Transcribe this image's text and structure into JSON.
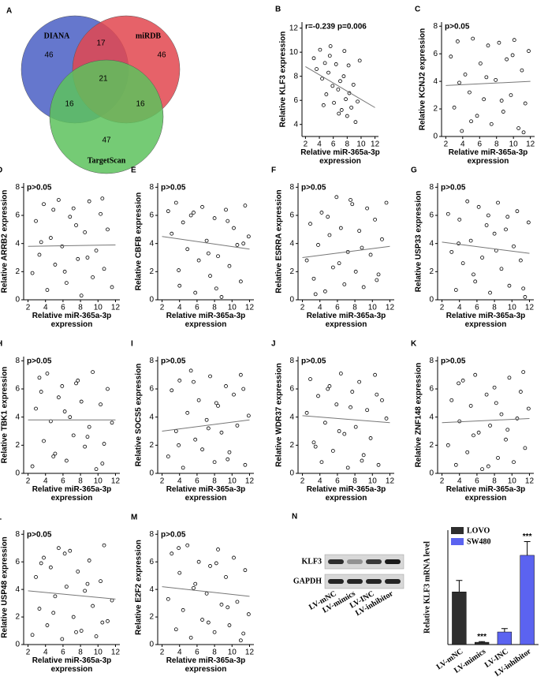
{
  "chart_data": [
    {
      "type": "venn",
      "label": "A",
      "sets": [
        "DIANA",
        "miRDB",
        "TargetScan"
      ],
      "colors": [
        "#4a5fc4",
        "#e2474f",
        "#5dc25d"
      ],
      "regions": [
        46,
        46,
        47,
        17,
        16,
        16,
        21
      ]
    },
    {
      "type": "scatter",
      "label": "B",
      "annotation": "r=-0.239   p=0.006",
      "xlabel": "Relative miR-365a-3p expression",
      "ylabel": "Relative KLF3  expression",
      "xlim": [
        1.5,
        12.5
      ],
      "ylim": [
        3,
        12.5
      ],
      "xticks": [
        2,
        4,
        6,
        8,
        10,
        12
      ],
      "yticks": [
        4,
        6,
        8,
        10,
        12
      ],
      "x": [
        3.2,
        3.6,
        4.1,
        4.4,
        4.8,
        5.0,
        5.3,
        5.6,
        5.9,
        6.1,
        6.4,
        6.7,
        7.0,
        7.2,
        7.5,
        7.8,
        8.0,
        8.3,
        8.6,
        8.9,
        9.2,
        9.5,
        4.6,
        5.5,
        6.8,
        7.6,
        8.2,
        9.8
      ],
      "y": [
        9.5,
        8.6,
        10.2,
        7.8,
        9.1,
        6.5,
        8.3,
        10.5,
        7.2,
        5.8,
        9.0,
        6.9,
        7.6,
        5.2,
        8.0,
        6.1,
        4.7,
        6.6,
        5.4,
        7.3,
        4.2,
        5.9,
        5.6,
        9.7,
        4.9,
        10.1,
        8.9,
        9.3
      ],
      "trend_x": [
        2,
        12
      ],
      "trend_y": [
        8.8,
        5.4
      ]
    },
    {
      "type": "scatter",
      "label": "C",
      "annotation": "p>0.05",
      "xlabel": "Relative miR-365a-3p expression",
      "ylabel": "Relative KCNJ2 expression",
      "xlim": [
        1.5,
        12.5
      ],
      "ylim": [
        0,
        8.3
      ],
      "xticks": [
        2,
        4,
        6,
        8,
        10,
        12
      ],
      "yticks": [
        0,
        2,
        4,
        6,
        8
      ],
      "x": [
        2.6,
        3.0,
        3.4,
        3.9,
        4.3,
        4.8,
        5.2,
        5.7,
        6.1,
        6.5,
        7.0,
        7.4,
        7.9,
        8.3,
        8.8,
        9.2,
        9.7,
        10.1,
        10.6,
        11.0,
        11.4,
        11.8,
        3.6,
        5.0,
        6.8,
        8.6,
        9.9,
        11.2
      ],
      "y": [
        5.8,
        2.1,
        6.9,
        0.4,
        4.5,
        3.2,
        7.1,
        1.5,
        5.3,
        2.7,
        6.6,
        0.9,
        4.1,
        6.8,
        1.8,
        5.6,
        3.0,
        7.0,
        0.6,
        4.8,
        2.4,
        6.2,
        3.9,
        1.1,
        4.3,
        2.6,
        5.9,
        0.3
      ],
      "trend_x": [
        2,
        12
      ],
      "trend_y": [
        3.7,
        4.0
      ]
    },
    {
      "type": "scatter",
      "label": "D",
      "annotation": "p>0.05",
      "xlabel": "Relative miR-365a-3p expression",
      "ylabel": "Relative ARRB2 expression",
      "xlim": [
        1.5,
        12.5
      ],
      "ylim": [
        0,
        8.3
      ],
      "xticks": [
        2,
        4,
        6,
        8,
        10,
        12
      ],
      "yticks": [
        0,
        2,
        4,
        6,
        8
      ],
      "x": [
        2.5,
        2.9,
        3.3,
        3.8,
        4.2,
        4.6,
        5.1,
        5.5,
        5.9,
        6.4,
        6.8,
        7.2,
        7.7,
        8.1,
        8.5,
        9.0,
        9.4,
        9.8,
        10.3,
        10.7,
        11.1,
        11.6,
        3.5,
        4.9,
        6.2,
        7.5,
        8.8,
        10.5
      ],
      "y": [
        1.9,
        5.6,
        3.2,
        6.8,
        0.7,
        4.4,
        2.5,
        7.1,
        3.8,
        1.2,
        5.9,
        6.5,
        2.9,
        0.3,
        4.8,
        7.0,
        1.6,
        3.5,
        6.1,
        2.2,
        5.0,
        0.9,
        4.1,
        6.4,
        2.0,
        5.3,
        3.0,
        7.2
      ],
      "trend_x": [
        2,
        12
      ],
      "trend_y": [
        3.8,
        3.9
      ]
    },
    {
      "type": "scatter",
      "label": "E",
      "annotation": "p>0.05",
      "xlabel": "Relative miR-365a-3p expression",
      "ylabel": "Relative CBFB  expression",
      "xlim": [
        1.5,
        12.5
      ],
      "ylim": [
        0,
        8.3
      ],
      "xticks": [
        2,
        4,
        6,
        8,
        10,
        12
      ],
      "yticks": [
        0,
        2,
        4,
        6,
        8
      ],
      "x": [
        2.7,
        3.1,
        3.6,
        4.0,
        4.4,
        4.9,
        5.3,
        5.8,
        6.2,
        6.6,
        7.1,
        7.5,
        8.0,
        8.4,
        8.8,
        9.3,
        9.7,
        10.2,
        10.6,
        11.0,
        11.5,
        11.9,
        3.9,
        5.6,
        7.3,
        8.2,
        9.5,
        11.3
      ],
      "y": [
        6.3,
        4.7,
        6.9,
        1.0,
        5.5,
        3.6,
        6.0,
        0.5,
        2.8,
        6.6,
        4.2,
        1.7,
        5.8,
        3.1,
        0.2,
        6.4,
        2.4,
        5.1,
        3.9,
        1.3,
        6.7,
        4.5,
        2.1,
        6.2,
        3.3,
        0.8,
        5.6,
        4.0
      ],
      "trend_x": [
        2,
        12
      ],
      "trend_y": [
        4.5,
        3.6
      ]
    },
    {
      "type": "scatter",
      "label": "F",
      "annotation": "p>0.05",
      "xlabel": "Relative miR-365a-3p expression",
      "ylabel": "Relative ESRRA expression",
      "xlim": [
        1.5,
        12.5
      ],
      "ylim": [
        0,
        8.3
      ],
      "xticks": [
        2,
        4,
        6,
        8,
        10,
        12
      ],
      "yticks": [
        0,
        2,
        4,
        6,
        8
      ],
      "x": [
        2.5,
        2.9,
        3.3,
        3.8,
        4.2,
        4.6,
        5.1,
        5.5,
        5.9,
        6.4,
        6.8,
        7.2,
        7.7,
        8.1,
        8.5,
        9.0,
        9.4,
        9.8,
        10.3,
        10.7,
        11.1,
        11.6,
        3.5,
        4.9,
        6.2,
        7.5,
        8.8,
        10.5
      ],
      "y": [
        2.8,
        5.4,
        1.5,
        3.9,
        6.2,
        0.6,
        4.6,
        2.3,
        7.3,
        5.1,
        1.1,
        3.4,
        6.8,
        2.0,
        4.9,
        0.9,
        6.5,
        3.2,
        5.7,
        1.8,
        4.3,
        6.9,
        0.4,
        5.9,
        2.6,
        7.1,
        3.7,
        1.4
      ],
      "trend_x": [
        2,
        12
      ],
      "trend_y": [
        3.0,
        3.8
      ]
    },
    {
      "type": "scatter",
      "label": "G",
      "annotation": "p>0.05",
      "xlabel": "Relative miR-365a-3p expression",
      "ylabel": "Relative USP33 expression",
      "xlim": [
        1.5,
        12.5
      ],
      "ylim": [
        0,
        8.3
      ],
      "xticks": [
        2,
        4,
        6,
        8,
        10,
        12
      ],
      "yticks": [
        0,
        2,
        4,
        6,
        8
      ],
      "x": [
        2.7,
        3.1,
        3.6,
        4.0,
        4.4,
        4.9,
        5.3,
        5.8,
        6.2,
        6.6,
        7.1,
        7.5,
        8.0,
        8.4,
        8.8,
        9.3,
        9.7,
        10.2,
        10.6,
        11.0,
        11.5,
        11.9,
        3.9,
        5.6,
        7.3,
        8.2,
        9.5,
        11.3
      ],
      "y": [
        6.1,
        3.4,
        0.7,
        5.7,
        2.6,
        7.0,
        4.2,
        1.3,
        6.6,
        3.0,
        5.3,
        0.5,
        4.7,
        6.9,
        2.2,
        5.0,
        1.0,
        3.8,
        6.3,
        2.8,
        0.2,
        5.5,
        4.0,
        1.8,
        6.0,
        3.5,
        5.9,
        0.8
      ],
      "trend_x": [
        2,
        12
      ],
      "trend_y": [
        4.1,
        3.3
      ]
    },
    {
      "type": "scatter",
      "label": "H",
      "annotation": "p>0.05",
      "xlabel": "Relative miR-365a-3p expression",
      "ylabel": "Relative TBK1  expression",
      "xlim": [
        1.5,
        12.5
      ],
      "ylim": [
        0,
        8.3
      ],
      "xticks": [
        2,
        4,
        6,
        8,
        10,
        12
      ],
      "yticks": [
        0,
        2,
        4,
        6,
        8
      ],
      "x": [
        2.5,
        2.9,
        3.3,
        3.8,
        4.2,
        4.6,
        5.1,
        5.5,
        5.9,
        6.4,
        6.8,
        7.2,
        7.7,
        8.1,
        8.5,
        9.0,
        9.4,
        9.8,
        10.3,
        10.7,
        11.1,
        11.6,
        3.5,
        4.9,
        6.2,
        7.5,
        8.8,
        10.5
      ],
      "y": [
        0.5,
        4.6,
        6.8,
        2.3,
        7.1,
        3.7,
        1.4,
        5.4,
        6.2,
        0.9,
        4.0,
        2.7,
        6.6,
        5.1,
        1.9,
        3.3,
        7.2,
        0.3,
        4.9,
        2.1,
        6.0,
        3.6,
        5.8,
        1.2,
        4.4,
        6.4,
        2.6,
        0.7
      ],
      "trend_x": [
        2,
        12
      ],
      "trend_y": [
        3.8,
        3.8
      ]
    },
    {
      "type": "scatter",
      "label": "I",
      "annotation": "p>0.05",
      "xlabel": "Relative miR-365a-3p expression",
      "ylabel": "Relative SOCS5  expression",
      "xlim": [
        1.5,
        12.5
      ],
      "ylim": [
        0,
        8.3
      ],
      "xticks": [
        2,
        4,
        6,
        8,
        10,
        12
      ],
      "yticks": [
        0,
        2,
        4,
        6,
        8
      ],
      "x": [
        2.7,
        3.1,
        3.6,
        4.0,
        4.4,
        4.9,
        5.3,
        5.8,
        6.2,
        6.6,
        7.1,
        7.5,
        8.0,
        8.4,
        8.8,
        9.3,
        9.7,
        10.2,
        10.6,
        11.0,
        11.5,
        11.9,
        3.9,
        5.6,
        7.3,
        8.2,
        9.5,
        11.3
      ],
      "y": [
        1.2,
        5.9,
        3.0,
        6.6,
        0.4,
        4.3,
        7.3,
        2.4,
        5.2,
        1.7,
        3.8,
        6.9,
        0.8,
        4.8,
        2.9,
        6.2,
        1.5,
        5.6,
        3.4,
        7.0,
        0.6,
        4.1,
        2.0,
        6.5,
        3.2,
        5.0,
        1.0,
        6.0
      ],
      "trend_x": [
        2,
        12
      ],
      "trend_y": [
        3.0,
        3.8
      ]
    },
    {
      "type": "scatter",
      "label": "J",
      "annotation": "p>0.05",
      "xlabel": "Relative miR-365a-3p expression",
      "ylabel": "Relative WDR37  expression",
      "xlim": [
        1.5,
        12.5
      ],
      "ylim": [
        0,
        8.3
      ],
      "xticks": [
        2,
        4,
        6,
        8,
        10,
        12
      ],
      "yticks": [
        0,
        2,
        4,
        6,
        8
      ],
      "x": [
        2.5,
        2.9,
        3.3,
        3.8,
        4.2,
        4.6,
        5.1,
        5.5,
        5.9,
        6.4,
        6.8,
        7.2,
        7.7,
        8.1,
        8.5,
        9.0,
        9.4,
        9.8,
        10.3,
        10.7,
        11.1,
        11.6,
        3.5,
        4.9,
        6.2,
        7.5,
        8.8,
        10.5
      ],
      "y": [
        4.3,
        6.7,
        2.2,
        5.5,
        0.8,
        3.6,
        6.2,
        1.6,
        4.9,
        7.1,
        2.8,
        0.4,
        5.8,
        3.3,
        6.5,
        1.3,
        4.5,
        2.5,
        7.0,
        0.6,
        5.2,
        3.9,
        1.9,
        6.0,
        3.0,
        4.7,
        0.9,
        5.6
      ],
      "trend_x": [
        2,
        12
      ],
      "trend_y": [
        4.1,
        3.6
      ]
    },
    {
      "type": "scatter",
      "label": "K",
      "annotation": "p>0.05",
      "xlabel": "Relative miR-365a-3p expression",
      "ylabel": "Relative ZNF148 expression",
      "xlim": [
        1.5,
        12.5
      ],
      "ylim": [
        0,
        8.3
      ],
      "xticks": [
        2,
        4,
        6,
        8,
        10,
        12
      ],
      "yticks": [
        0,
        2,
        4,
        6,
        8
      ],
      "x": [
        2.7,
        3.1,
        3.6,
        4.0,
        4.4,
        4.9,
        5.3,
        5.8,
        6.2,
        6.6,
        7.1,
        7.5,
        8.0,
        8.4,
        8.8,
        9.3,
        9.7,
        10.2,
        10.6,
        11.0,
        11.5,
        11.9,
        3.9,
        5.6,
        7.3,
        8.2,
        9.5,
        11.3
      ],
      "y": [
        2.0,
        5.2,
        0.6,
        3.7,
        6.6,
        1.5,
        4.8,
        7.0,
        2.9,
        0.3,
        5.6,
        3.4,
        6.1,
        1.1,
        4.2,
        2.4,
        6.8,
        0.8,
        3.9,
        5.8,
        1.8,
        4.6,
        6.4,
        2.7,
        0.5,
        5.0,
        3.1,
        7.2
      ],
      "trend_x": [
        2,
        12
      ],
      "trend_y": [
        3.6,
        3.9
      ]
    },
    {
      "type": "scatter",
      "label": "L",
      "annotation": "p>0.05",
      "xlabel": "Relative miR-365a-3p expression",
      "ylabel": "Relative USP48 expression",
      "xlim": [
        1.5,
        12.5
      ],
      "ylim": [
        0,
        8.3
      ],
      "xticks": [
        2,
        4,
        6,
        8,
        10,
        12
      ],
      "yticks": [
        0,
        2,
        4,
        6,
        8
      ],
      "x": [
        2.5,
        2.9,
        3.3,
        3.8,
        4.2,
        4.6,
        5.1,
        5.5,
        5.9,
        6.4,
        6.8,
        7.2,
        7.7,
        8.1,
        8.5,
        9.0,
        9.4,
        9.8,
        10.3,
        10.7,
        11.1,
        11.6,
        3.5,
        4.9,
        6.2,
        7.5,
        8.8,
        10.5
      ],
      "y": [
        0.7,
        4.9,
        2.6,
        6.3,
        1.4,
        5.6,
        3.5,
        7.0,
        0.4,
        4.2,
        6.8,
        2.0,
        5.3,
        1.0,
        3.9,
        6.1,
        2.8,
        0.6,
        4.6,
        7.2,
        1.7,
        3.2,
        5.9,
        2.3,
        6.6,
        0.9,
        4.4,
        1.6
      ],
      "trend_x": [
        2,
        12
      ],
      "trend_y": [
        3.9,
        3.3
      ]
    },
    {
      "type": "scatter",
      "label": "M",
      "annotation": "p>0.05",
      "xlabel": "Relative miR-365a-3p expression",
      "ylabel": "Relative E2F2  expression",
      "xlim": [
        1.5,
        12.5
      ],
      "ylim": [
        0,
        8.3
      ],
      "xticks": [
        2,
        4,
        6,
        8,
        10,
        12
      ],
      "yticks": [
        0,
        2,
        4,
        6,
        8
      ],
      "x": [
        2.7,
        3.1,
        3.6,
        4.0,
        4.4,
        4.9,
        5.3,
        5.8,
        6.2,
        6.6,
        7.1,
        7.5,
        8.0,
        8.4,
        8.8,
        9.3,
        9.7,
        10.2,
        10.6,
        11.0,
        11.5,
        11.9,
        3.9,
        5.6,
        7.3,
        8.2,
        9.5,
        11.3
      ],
      "y": [
        3.3,
        6.6,
        1.1,
        5.2,
        2.5,
        7.2,
        0.5,
        4.4,
        6.0,
        1.8,
        3.7,
        5.7,
        0.9,
        6.9,
        2.9,
        4.9,
        1.4,
        6.3,
        3.1,
        0.3,
        5.4,
        2.2,
        7.0,
        4.1,
        1.6,
        5.9,
        2.7,
        0.8
      ],
      "trend_x": [
        2,
        12
      ],
      "trend_y": [
        4.2,
        3.5
      ]
    },
    {
      "type": "blot",
      "label": "N",
      "rows": [
        "KLF3",
        "GAPDH"
      ],
      "lanes": [
        "LV-mNC",
        "LV-mimics",
        "LV-INC",
        "LV-inhibitor"
      ]
    },
    {
      "type": "bar",
      "ylabel": "Relative KLF3 mRNA level",
      "categories": [
        "LV-mNC",
        "LV-mimics",
        "LV-INC",
        "LV-inhibitor"
      ],
      "ylim": [
        0,
        50
      ],
      "series": [
        {
          "name": "LOVO",
          "color": "#2e2e2e",
          "values": [
            23,
            1,
            null,
            null
          ],
          "errors": [
            5,
            0.3,
            null,
            null
          ]
        },
        {
          "name": "SW480",
          "color": "#5b63f0",
          "values": [
            null,
            null,
            5.5,
            39
          ],
          "errors": [
            null,
            null,
            1.5,
            6
          ]
        }
      ],
      "significance": [
        null,
        "***",
        null,
        "***"
      ]
    }
  ]
}
